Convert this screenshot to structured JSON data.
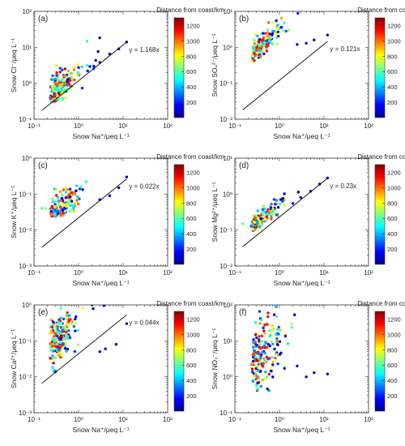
{
  "figure": {
    "colorbar_title": "Distance from coast/km",
    "colorbar_ticks": [
      200,
      400,
      600,
      800,
      1000,
      1200
    ],
    "colorbar_range": [
      0,
      1300
    ],
    "colorbar_colors": [
      "#00008f",
      "#0000ff",
      "#0080ff",
      "#00ffff",
      "#80ff80",
      "#ffff00",
      "#ff8000",
      "#ff0000",
      "#800000"
    ]
  },
  "chart_data": [
    {
      "type": "scatter",
      "panel_label": "(a)",
      "xlabel": "Snow Na⁺/μeq L⁻¹",
      "ylabel": "Snow Cl⁻/μeq L⁻¹",
      "xscale": "log",
      "yscale": "log",
      "xlim": [
        0.1,
        100
      ],
      "ylim": [
        0.1,
        100
      ],
      "x_ticks": [
        "10⁻¹",
        "10⁰",
        "10¹",
        "10²"
      ],
      "y_ticks": [
        "10⁻¹",
        "10⁰",
        "10¹",
        "10²"
      ],
      "fit": {
        "label": "y = 1.168x",
        "slope": 1.168,
        "x_range": [
          0.15,
          12
        ]
      },
      "cloud": {
        "ratio_mean": 2.0,
        "ratio_spread": 0.45,
        "min_y": 0.35,
        "count": 170,
        "seed": 11
      },
      "points": [
        {
          "x": 12,
          "y": 14,
          "dist": 50
        },
        {
          "x": 8,
          "y": 9,
          "dist": 60
        },
        {
          "x": 5,
          "y": 6.5,
          "dist": 80
        },
        {
          "x": 3,
          "y": 3.8,
          "dist": 120
        },
        {
          "x": 2.2,
          "y": 3.0,
          "dist": 150
        },
        {
          "x": 1.6,
          "y": 2.2,
          "dist": 180
        }
      ]
    },
    {
      "type": "scatter",
      "panel_label": "(b)",
      "xlabel": "Snow Na⁺/μeq L⁻¹",
      "ylabel": "Snow SO₄²⁻/μeq L⁻¹",
      "xscale": "log",
      "yscale": "log",
      "xlim": [
        0.1,
        100
      ],
      "ylim": [
        0.01,
        10
      ],
      "x_ticks": [
        "10⁻¹",
        "10⁰",
        "10¹",
        "10²"
      ],
      "y_ticks": [
        "10⁻²",
        "10⁻¹",
        "10⁰",
        "10¹"
      ],
      "fit": {
        "label": "y = 0.121x",
        "slope": 0.121,
        "x_range": [
          0.15,
          12
        ]
      },
      "cloud": {
        "ratio_mean": 3.0,
        "ratio_spread": 0.35,
        "min_y": 0.5,
        "count": 150,
        "seed": 23
      },
      "points": [
        {
          "x": 12,
          "y": 2.2,
          "dist": 50
        },
        {
          "x": 6,
          "y": 1.6,
          "dist": 70
        },
        {
          "x": 4,
          "y": 1.3,
          "dist": 90
        },
        {
          "x": 2.5,
          "y": 1.2,
          "dist": 120
        }
      ]
    },
    {
      "type": "scatter",
      "panel_label": "(c)",
      "xlabel": "Snow Na⁺/μeq L⁻¹",
      "ylabel": "Snow K⁺/μeq L⁻¹",
      "xscale": "log",
      "yscale": "log",
      "xlim": [
        0.1,
        100
      ],
      "ylim": [
        0.001,
        1
      ],
      "x_ticks": [
        "10⁻¹",
        "10⁰",
        "10¹",
        "10²"
      ],
      "y_ticks": [
        "10⁻³",
        "10⁻²",
        "10⁻¹",
        "10⁰"
      ],
      "fit": {
        "label": "y = 0.022x",
        "slope": 0.022,
        "x_range": [
          0.15,
          12
        ]
      },
      "cloud": {
        "ratio_mean": 0.1,
        "ratio_spread": 0.45,
        "min_y": 0.03,
        "count": 170,
        "seed": 37
      },
      "points": [
        {
          "x": 12,
          "y": 0.3,
          "dist": 50
        },
        {
          "x": 8,
          "y": 0.15,
          "dist": 60
        },
        {
          "x": 5,
          "y": 0.09,
          "dist": 80
        },
        {
          "x": 3,
          "y": 0.07,
          "dist": 110
        },
        {
          "x": 0.15,
          "y": 0.04,
          "dist": 600
        },
        {
          "x": 0.18,
          "y": 0.04,
          "dist": 650
        }
      ]
    },
    {
      "type": "scatter",
      "panel_label": "(d)",
      "xlabel": "Snow Na⁺/μeq L⁻¹",
      "ylabel": "Snow Mg²⁺/μeq L⁻¹",
      "xscale": "log",
      "yscale": "log",
      "xlim": [
        0.1,
        100
      ],
      "ylim": [
        0.01,
        10
      ],
      "x_ticks": [
        "10⁻¹",
        "10⁰",
        "10¹",
        "10²"
      ],
      "y_ticks": [
        "10⁻²",
        "10⁻¹",
        "10⁰",
        "10¹"
      ],
      "fit": {
        "label": "y = 0.23x",
        "slope": 0.23,
        "x_range": [
          0.15,
          12
        ]
      },
      "cloud": {
        "ratio_mean": 0.5,
        "ratio_spread": 0.25,
        "min_y": 0.12,
        "count": 170,
        "seed": 41
      },
      "points": [
        {
          "x": 12,
          "y": 2.8,
          "dist": 50
        },
        {
          "x": 8,
          "y": 1.9,
          "dist": 60
        },
        {
          "x": 5,
          "y": 1.2,
          "dist": 80
        },
        {
          "x": 3,
          "y": 0.8,
          "dist": 110
        },
        {
          "x": 2,
          "y": 0.55,
          "dist": 140
        },
        {
          "x": 0.15,
          "y": 0.15,
          "dist": 600
        }
      ]
    },
    {
      "type": "scatter",
      "panel_label": "(e)",
      "xlabel": "Snow Na⁺/μeq L⁻¹",
      "ylabel": "Snow Ca²⁺/μeq L⁻¹",
      "xscale": "log",
      "yscale": "log",
      "xlim": [
        0.1,
        100
      ],
      "ylim": [
        0.001,
        1
      ],
      "x_ticks": [
        "10⁻¹",
        "10⁰",
        "10¹",
        "10²"
      ],
      "y_ticks": [
        "10⁻³",
        "10⁻²",
        "10⁻¹",
        "10⁰"
      ],
      "fit": {
        "label": "y = 0.044x",
        "slope": 0.044,
        "x_range": [
          0.15,
          12
        ]
      },
      "cloud": {
        "ratio_mean": 0.35,
        "ratio_spread": 0.7,
        "min_y": 0.006,
        "count": 180,
        "seed": 53
      },
      "points": [
        {
          "x": 12,
          "y": 0.3,
          "dist": 50
        },
        {
          "x": 7,
          "y": 0.08,
          "dist": 70
        },
        {
          "x": 4,
          "y": 0.06,
          "dist": 90
        },
        {
          "x": 3,
          "y": 0.05,
          "dist": 110
        }
      ]
    },
    {
      "type": "scatter",
      "panel_label": "(f)",
      "xlabel": "Snow Na⁺/μeq L⁻¹",
      "ylabel": "Snow NO₃⁻/μeq L⁻¹",
      "xscale": "log",
      "yscale": "log",
      "xlim": [
        0.1,
        100
      ],
      "ylim": [
        0.1,
        100
      ],
      "x_ticks": [
        "10⁻¹",
        "10⁰",
        "10¹",
        "10²"
      ],
      "y_ticks": [
        "10⁻¹",
        "10⁰",
        "10¹",
        "10²"
      ],
      "fit": null,
      "cloud": {
        "ratio_mean": 10.0,
        "ratio_spread": 0.9,
        "min_y": 0.5,
        "count": 180,
        "seed": 67
      },
      "points": [
        {
          "x": 12,
          "y": 1.2,
          "dist": 50
        },
        {
          "x": 6,
          "y": 1.3,
          "dist": 70
        },
        {
          "x": 4,
          "y": 1.0,
          "dist": 90
        },
        {
          "x": 2.5,
          "y": 2.0,
          "dist": 120
        }
      ]
    }
  ]
}
